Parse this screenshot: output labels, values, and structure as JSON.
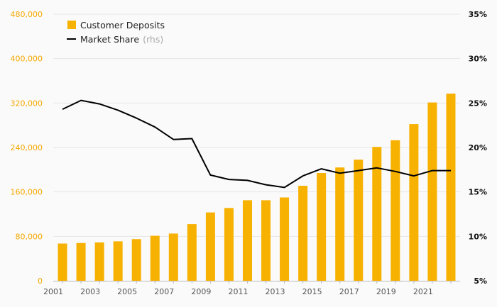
{
  "chart_data": {
    "type": "bar",
    "x": [
      2001,
      2002,
      2003,
      2004,
      2005,
      2006,
      2007,
      2008,
      2009,
      2010,
      2011,
      2012,
      2013,
      2014,
      2015,
      2016,
      2017,
      2018,
      2019,
      2020,
      2021,
      2022
    ],
    "series": [
      {
        "name": "Customer Deposits",
        "type": "bar",
        "axis": "left",
        "color": "#f7b100",
        "values": [
          67000,
          68000,
          69000,
          71000,
          75000,
          81000,
          85000,
          102000,
          123000,
          131000,
          145000,
          145000,
          150000,
          171000,
          194000,
          204000,
          218000,
          241000,
          253000,
          282000,
          321000,
          337000
        ]
      },
      {
        "name": "Market Share",
        "type": "line",
        "axis": "right",
        "color": "#000000",
        "values": [
          24.3,
          25.3,
          24.9,
          24.2,
          23.3,
          22.3,
          20.9,
          21.0,
          16.9,
          16.4,
          16.3,
          15.8,
          15.5,
          16.8,
          17.6,
          17.1,
          17.4,
          17.7,
          17.3,
          16.8,
          17.4,
          17.4
        ]
      }
    ],
    "legend": [
      {
        "label": "Customer Deposits",
        "suffix": ""
      },
      {
        "label": "Market Share",
        "suffix": "(rhs)"
      }
    ],
    "y_left": {
      "min": 0,
      "max": 480000,
      "ticks": [
        "0",
        "80,000",
        "160,000",
        "240,000",
        "320,000",
        "400,000",
        "480,000"
      ],
      "color": "#f5a800"
    },
    "y_right": {
      "min": 5,
      "max": 35,
      "ticks": [
        "5%",
        "10%",
        "15%",
        "20%",
        "25%",
        "30%",
        "35%"
      ]
    },
    "x_tick_labels": [
      "2001",
      "2003",
      "2005",
      "2007",
      "2009",
      "2011",
      "2013",
      "2015",
      "2017",
      "2019",
      "2021"
    ],
    "grid": true,
    "legend_position": "top-left",
    "title": "",
    "xlabel": "",
    "ylabel": ""
  }
}
